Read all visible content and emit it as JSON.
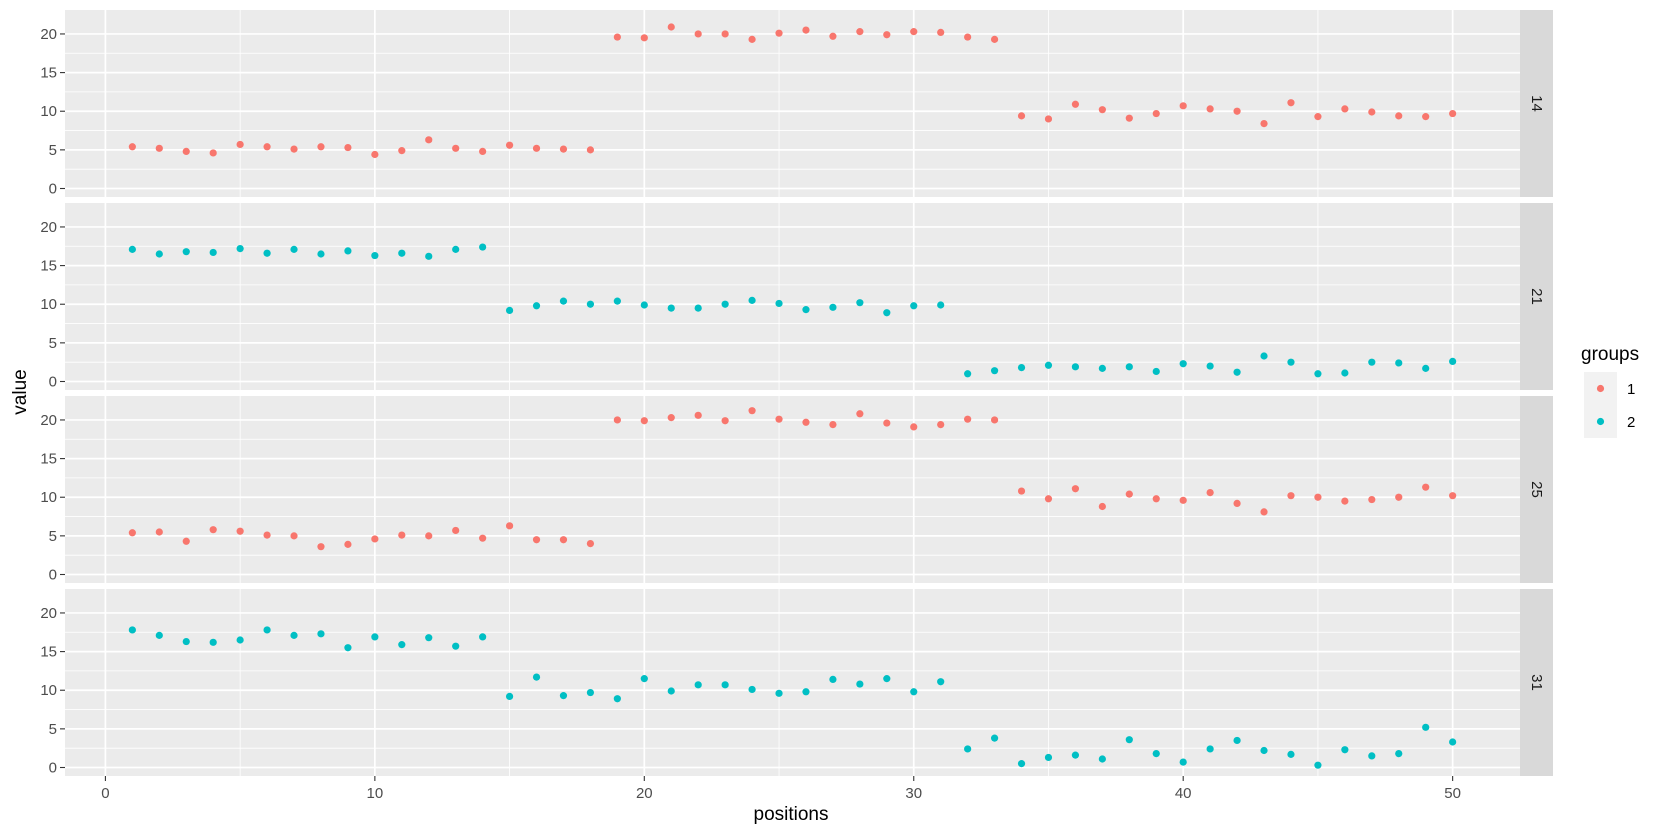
{
  "chart_data": {
    "type": "scatter",
    "faceted": true,
    "xlabel": "positions",
    "ylabel": "value",
    "xlim": [
      -1.5,
      52.5
    ],
    "ylim": [
      -1.1,
      23.1
    ],
    "xticks": [
      0,
      10,
      20,
      30,
      40,
      50
    ],
    "yticks": [
      0,
      5,
      10,
      15,
      20
    ],
    "grid": true,
    "legend": {
      "title": "groups",
      "position": "right",
      "entries": [
        {
          "label": "1",
          "color": "#F8766D"
        },
        {
          "label": "2",
          "color": "#00BFC4"
        }
      ]
    },
    "panels": [
      {
        "strip": "14",
        "group": "1",
        "x": [
          1,
          2,
          3,
          4,
          5,
          6,
          7,
          8,
          9,
          10,
          11,
          12,
          13,
          14,
          15,
          16,
          17,
          18,
          19,
          20,
          21,
          22,
          23,
          24,
          25,
          26,
          27,
          28,
          29,
          30,
          31,
          32,
          33,
          34,
          35,
          36,
          37,
          38,
          39,
          40,
          41,
          42,
          43,
          44,
          45,
          46,
          47,
          48,
          49,
          50
        ],
        "y": [
          5.4,
          5.2,
          4.8,
          4.6,
          5.7,
          5.4,
          5.1,
          5.4,
          5.3,
          4.4,
          4.9,
          6.3,
          5.2,
          4.8,
          5.6,
          5.2,
          5.1,
          5.0,
          19.6,
          19.5,
          20.9,
          20.0,
          20.0,
          19.3,
          20.1,
          20.5,
          19.7,
          20.3,
          19.9,
          20.3,
          20.2,
          19.6,
          19.3,
          9.4,
          9.0,
          10.9,
          10.2,
          9.1,
          9.7,
          10.7,
          10.3,
          10.0,
          8.4,
          11.1,
          9.3,
          10.3,
          9.9,
          9.4,
          9.3,
          9.7
        ]
      },
      {
        "strip": "21",
        "group": "2",
        "x": [
          1,
          2,
          3,
          4,
          5,
          6,
          7,
          8,
          9,
          10,
          11,
          12,
          13,
          14,
          15,
          16,
          17,
          18,
          19,
          20,
          21,
          22,
          23,
          24,
          25,
          26,
          27,
          28,
          29,
          30,
          31,
          32,
          33,
          34,
          35,
          36,
          37,
          38,
          39,
          40,
          41,
          42,
          43,
          44,
          45,
          46,
          47,
          48,
          49,
          50
        ],
        "y": [
          17.1,
          16.5,
          16.8,
          16.7,
          17.2,
          16.6,
          17.1,
          16.5,
          16.9,
          16.3,
          16.6,
          16.2,
          17.1,
          17.4,
          9.2,
          9.8,
          10.4,
          10.0,
          10.4,
          9.9,
          9.5,
          9.5,
          10.0,
          10.5,
          10.1,
          9.3,
          9.6,
          10.2,
          8.9,
          9.8,
          9.9,
          1.0,
          1.4,
          1.8,
          2.1,
          1.9,
          1.7,
          1.9,
          1.3,
          2.3,
          2.0,
          1.2,
          3.3,
          2.5,
          1.0,
          1.1,
          2.5,
          2.4,
          1.7,
          2.6
        ]
      },
      {
        "strip": "25",
        "group": "1",
        "x": [
          1,
          2,
          3,
          4,
          5,
          6,
          7,
          8,
          9,
          10,
          11,
          12,
          13,
          14,
          15,
          16,
          17,
          18,
          19,
          20,
          21,
          22,
          23,
          24,
          25,
          26,
          27,
          28,
          29,
          30,
          31,
          32,
          33,
          34,
          35,
          36,
          37,
          38,
          39,
          40,
          41,
          42,
          43,
          44,
          45,
          46,
          47,
          48,
          49,
          50
        ],
        "y": [
          5.4,
          5.5,
          4.3,
          5.8,
          5.6,
          5.1,
          5.0,
          3.6,
          3.9,
          4.6,
          5.1,
          5.0,
          5.7,
          4.7,
          6.3,
          4.5,
          4.5,
          4.0,
          20.0,
          19.9,
          20.3,
          20.6,
          19.9,
          21.2,
          20.1,
          19.7,
          19.4,
          20.8,
          19.6,
          19.1,
          19.4,
          20.1,
          20.0,
          10.8,
          9.8,
          11.1,
          8.8,
          10.4,
          9.8,
          9.6,
          10.6,
          9.2,
          8.1,
          10.2,
          10.0,
          9.5,
          9.7,
          10.0,
          11.3,
          10.2
        ]
      },
      {
        "strip": "31",
        "group": "2",
        "x": [
          1,
          2,
          3,
          4,
          5,
          6,
          7,
          8,
          9,
          10,
          11,
          12,
          13,
          14,
          15,
          16,
          17,
          18,
          19,
          20,
          21,
          22,
          23,
          24,
          25,
          26,
          27,
          28,
          29,
          30,
          31,
          32,
          33,
          34,
          35,
          36,
          37,
          38,
          39,
          40,
          41,
          42,
          43,
          44,
          45,
          46,
          47,
          48,
          49,
          50
        ],
        "y": [
          17.8,
          17.1,
          16.3,
          16.2,
          16.5,
          17.8,
          17.1,
          17.3,
          15.5,
          16.9,
          15.9,
          16.8,
          15.7,
          16.9,
          9.2,
          11.7,
          9.3,
          9.7,
          8.9,
          11.5,
          9.9,
          10.7,
          10.7,
          10.1,
          9.6,
          9.8,
          11.4,
          10.8,
          11.5,
          9.8,
          11.1,
          2.4,
          3.8,
          0.5,
          1.3,
          1.6,
          1.1,
          3.6,
          1.8,
          0.7,
          2.4,
          3.5,
          2.2,
          1.7,
          0.3,
          2.3,
          1.5,
          1.8,
          5.2,
          3.3
        ]
      }
    ]
  }
}
